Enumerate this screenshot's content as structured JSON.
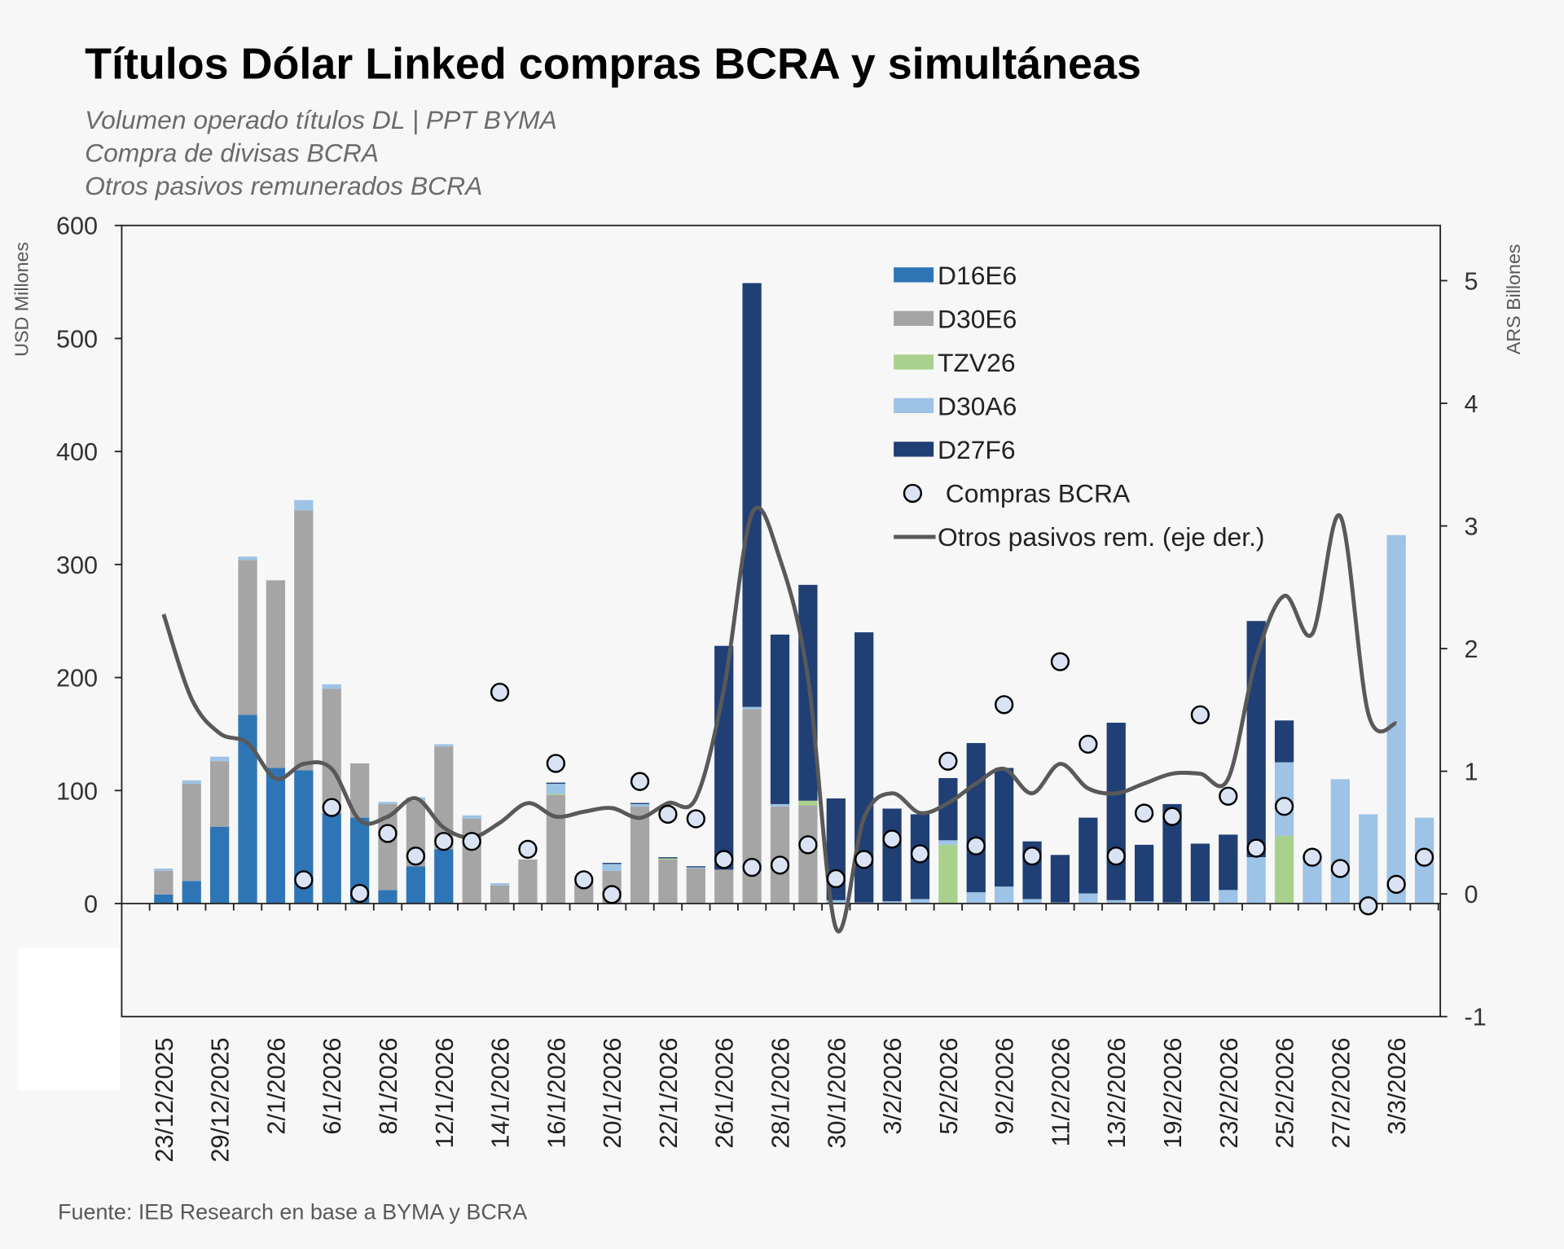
{
  "title": "Títulos Dólar Linked compras BCRA y simultáneas",
  "subtitles": [
    "Volumen operado títulos DL | PPT BYMA",
    "Compra de divisas BCRA",
    "Otros pasivos remunerados BCRA"
  ],
  "source": "Fuente: IEB Research en base a BYMA y BCRA",
  "chart_data": {
    "type": "bar",
    "stacked": true,
    "ylabel": "USD Millones",
    "y2label": "ARS Billones",
    "ylim": [
      -100,
      600
    ],
    "y2lim": [
      -1,
      5.45
    ],
    "yticks": [
      0,
      100,
      200,
      300,
      400,
      500,
      600
    ],
    "y2ticks": [
      -1,
      0,
      1,
      2,
      3,
      4,
      5
    ],
    "grid": false,
    "legend_placement": "top-center",
    "categories": [
      "23/12/2025",
      "",
      "29/12/2025",
      "",
      "2/1/2026",
      "",
      "6/1/2026",
      "",
      "8/1/2026",
      "",
      "12/1/2026",
      "",
      "14/1/2026",
      "",
      "16/1/2026",
      "",
      "20/1/2026",
      "",
      "22/1/2026",
      "",
      "26/1/2026",
      "",
      "28/1/2026",
      "",
      "30/1/2026",
      "",
      "3/2/2026",
      "",
      "5/2/2026",
      "",
      "9/2/2026",
      "",
      "11/2/2026",
      "",
      "13/2/2026",
      "",
      "19/2/2026",
      "",
      "23/2/2026",
      "",
      "25/2/2026",
      "",
      "27/2/2026",
      "",
      "3/3/2026",
      ""
    ],
    "series": [
      {
        "name": "D16E6",
        "color": "#2e75b6",
        "kind": "bar",
        "values": [
          8,
          20,
          68,
          167,
          120,
          118,
          80,
          76,
          12,
          33,
          48,
          0,
          0,
          0,
          0,
          0,
          0,
          0,
          0,
          0,
          0,
          0,
          0,
          0,
          0,
          0,
          0,
          0,
          0,
          0,
          0,
          0,
          0,
          0,
          0,
          0,
          0,
          0,
          0,
          0,
          0,
          0,
          0,
          0,
          0,
          0
        ]
      },
      {
        "name": "D30E6",
        "color": "#a5a5a5",
        "kind": "bar",
        "values": [
          21,
          86,
          58,
          137,
          166,
          230,
          110,
          48,
          76,
          58,
          91,
          75,
          16,
          39,
          96,
          18,
          29,
          86,
          39,
          31,
          30,
          172,
          86,
          87,
          0,
          0,
          0,
          0,
          0,
          0,
          0,
          0,
          0,
          0,
          0,
          0,
          0,
          0,
          0,
          0,
          0,
          0,
          0,
          0,
          0,
          0
        ]
      },
      {
        "name": "TZV26",
        "color": "#a9d18e",
        "kind": "bar",
        "values": [
          0,
          0,
          0,
          0,
          0,
          0,
          0,
          0,
          0,
          0,
          0,
          0,
          0,
          0,
          1,
          0,
          0,
          0,
          1,
          0,
          0,
          0,
          0,
          4,
          0,
          0,
          0,
          0,
          52,
          0,
          0,
          0,
          0,
          0,
          0,
          0,
          0,
          0,
          0,
          0,
          60,
          0,
          0,
          0,
          0,
          0
        ]
      },
      {
        "name": "D30A6",
        "color": "#9dc3e6",
        "kind": "bar",
        "values": [
          2,
          3,
          4,
          3,
          0,
          9,
          4,
          0,
          2,
          3,
          2,
          3,
          2,
          0,
          9,
          2,
          6,
          2,
          0,
          1,
          0,
          2,
          2,
          0,
          3,
          1,
          2,
          4,
          4,
          10,
          15,
          4,
          1,
          9,
          3,
          2,
          1,
          2,
          12,
          41,
          65,
          40,
          110,
          79,
          326,
          76
        ]
      },
      {
        "name": "D27F6",
        "color": "#203f74",
        "kind": "bar",
        "values": [
          0,
          0,
          0,
          0,
          0,
          0,
          0,
          0,
          0,
          0,
          0,
          0,
          0,
          0,
          1,
          0,
          1,
          1,
          1,
          1,
          198,
          375,
          150,
          191,
          90,
          239,
          82,
          75,
          55,
          132,
          105,
          51,
          42,
          67,
          157,
          50,
          87,
          51,
          49,
          209,
          37,
          0,
          0,
          0,
          0,
          0
        ]
      },
      {
        "name": "Compras BCRA",
        "color": "#dae3f3",
        "kind": "scatter",
        "values": [
          null,
          null,
          null,
          null,
          null,
          21,
          85,
          9,
          62,
          42,
          55,
          55,
          187,
          48,
          124,
          21,
          8,
          108,
          79,
          75,
          39,
          32,
          34,
          52,
          22,
          39,
          57,
          44,
          126,
          51,
          176,
          42,
          214,
          141,
          42,
          80,
          77,
          167,
          95,
          49,
          86,
          41,
          31,
          -2,
          17,
          41
        ]
      },
      {
        "name": "Otros pasivos rem. (eje der.)",
        "color": "#595959",
        "kind": "line",
        "axis": "right",
        "values": [
          2.28,
          1.59,
          1.31,
          1.23,
          0.94,
          1.06,
          1.02,
          0.6,
          0.63,
          0.78,
          0.54,
          0.46,
          0.58,
          0.74,
          0.63,
          0.67,
          0.7,
          0.62,
          0.74,
          0.78,
          1.67,
          3.1,
          2.73,
          1.76,
          -0.28,
          0.62,
          0.82,
          0.66,
          0.74,
          0.9,
          1.02,
          0.82,
          1.06,
          0.86,
          0.82,
          0.9,
          0.98,
          0.98,
          0.94,
          1.92,
          2.43,
          2.12,
          3.08,
          1.47,
          1.39,
          null
        ]
      }
    ]
  }
}
